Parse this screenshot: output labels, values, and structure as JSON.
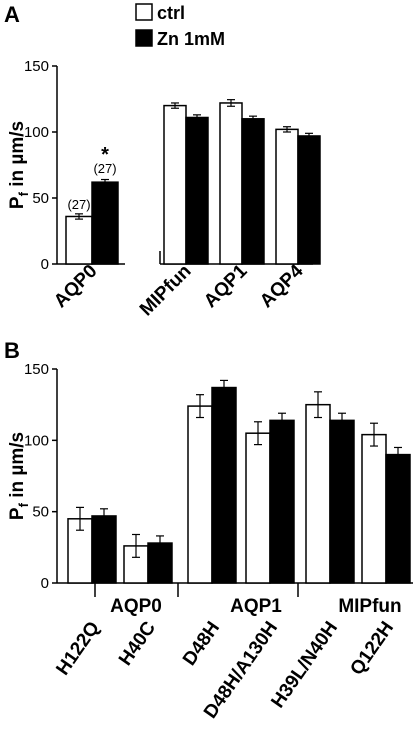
{
  "legend": {
    "items": [
      {
        "label": "ctrl",
        "color": "#ffffff"
      },
      {
        "label": "Zn 1mM",
        "color": "#000000"
      }
    ]
  },
  "chart_data": [
    {
      "type": "bar",
      "panel": "A",
      "ylabel_main": "P",
      "ylabel_sub": "f",
      "ylabel_rest": " in µm/s",
      "ylim": [
        0,
        150
      ],
      "yticks": [
        0,
        50,
        100,
        150
      ],
      "categories": [
        "AQP0",
        "MIPfun",
        "AQP1",
        "AQP4"
      ],
      "series": [
        {
          "name": "ctrl",
          "color": "#ffffff",
          "values": [
            36,
            120,
            122,
            102
          ],
          "errors": [
            2,
            2,
            2.5,
            2
          ]
        },
        {
          "name": "Zn 1mM",
          "color": "#000000",
          "values": [
            62,
            111,
            110,
            97
          ],
          "errors": [
            2,
            2,
            2,
            2
          ]
        }
      ],
      "annotations": [
        {
          "text": "(27)",
          "category": "AQP0",
          "series": "ctrl"
        },
        {
          "text": "(27)",
          "category": "AQP0",
          "series": "Zn 1mM"
        },
        {
          "text": "*",
          "category": "AQP0",
          "series": "Zn 1mM"
        }
      ]
    },
    {
      "type": "bar",
      "panel": "B",
      "ylabel_main": "P",
      "ylabel_sub": "f",
      "ylabel_rest": " in µm/s",
      "ylim": [
        0,
        150
      ],
      "yticks": [
        0,
        50,
        100,
        150
      ],
      "categories": [
        "H122Q",
        "H40C",
        "D48H",
        "D48H/A130H",
        "H39L/N40H",
        "Q122H"
      ],
      "groups": [
        "AQP0",
        "AQP1",
        "MIPfun"
      ],
      "series": [
        {
          "name": "ctrl",
          "color": "#ffffff",
          "values": [
            45,
            26,
            124,
            105,
            125,
            104
          ],
          "errors": [
            8,
            8,
            8,
            8,
            9,
            8
          ]
        },
        {
          "name": "Zn 1mM",
          "color": "#000000",
          "values": [
            47,
            28,
            137,
            114,
            114,
            90
          ],
          "errors": [
            5,
            5,
            5,
            5,
            5,
            5
          ]
        }
      ]
    }
  ]
}
